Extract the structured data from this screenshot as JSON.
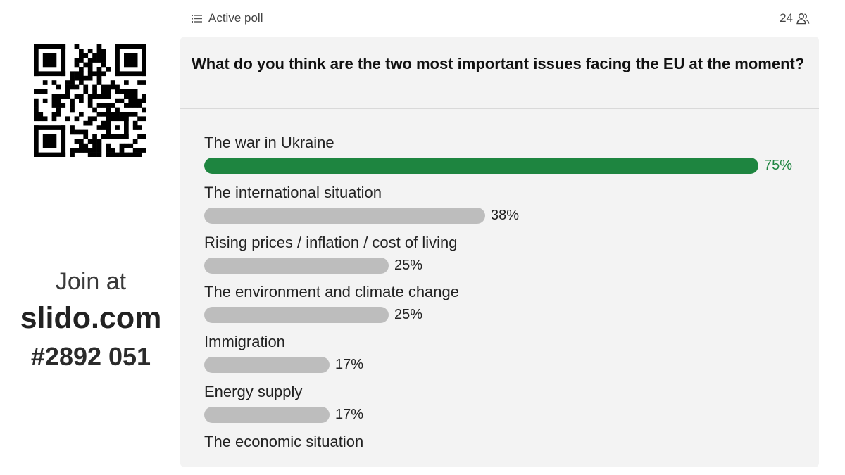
{
  "sidebar": {
    "qr_icon": "qr-code-icon",
    "join_label": "Join at",
    "join_site": "slido.com",
    "event_code": "#2892 051"
  },
  "header": {
    "list_icon": "list-icon",
    "status": "Active poll",
    "participant_count": "24",
    "participants_icon": "people-icon"
  },
  "poll": {
    "question": "What do you think are the two most important issues facing the EU at the moment?",
    "accent_color": "#1e8540",
    "bar_color": "#bdbdbd",
    "options": [
      {
        "label": "The war in Ukraine",
        "percent": 75,
        "percent_label": "75%",
        "leading": true
      },
      {
        "label": "The international situation",
        "percent": 38,
        "percent_label": "38%",
        "leading": false
      },
      {
        "label": "Rising prices / inflation / cost of living",
        "percent": 25,
        "percent_label": "25%",
        "leading": false
      },
      {
        "label": "The environment and climate change",
        "percent": 25,
        "percent_label": "25%",
        "leading": false
      },
      {
        "label": "Immigration",
        "percent": 17,
        "percent_label": "17%",
        "leading": false
      },
      {
        "label": "Energy supply",
        "percent": 17,
        "percent_label": "17%",
        "leading": false
      },
      {
        "label": "The economic situation",
        "percent": null,
        "percent_label": null,
        "leading": false
      }
    ]
  }
}
